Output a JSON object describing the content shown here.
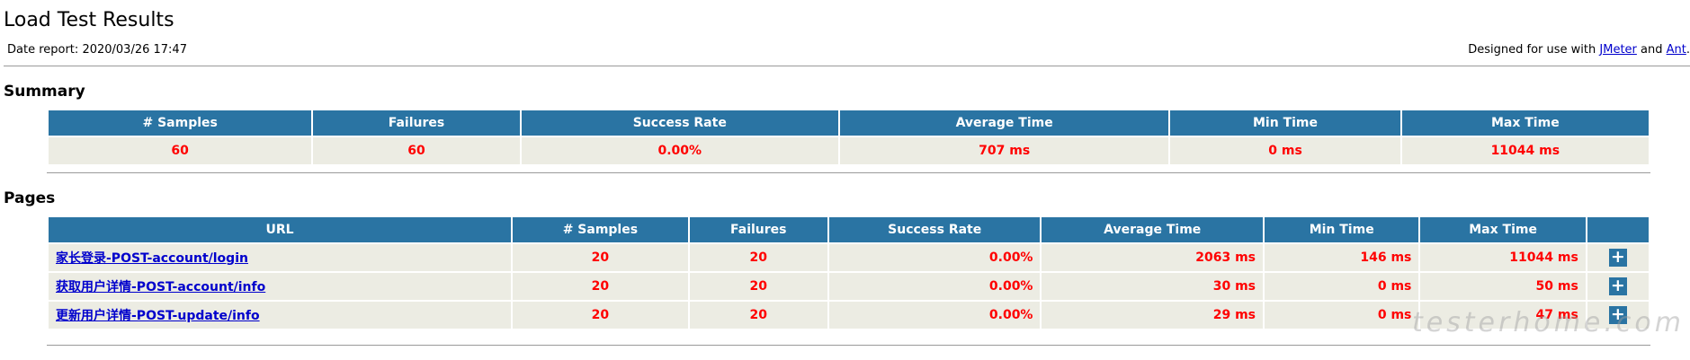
{
  "title": "Load Test Results",
  "date_report": {
    "label": "Date report:",
    "value": "2020/03/26 17:47"
  },
  "designed_for": {
    "prefix": "Designed for use with ",
    "link1": "JMeter",
    "middle": " and ",
    "link2": "Ant",
    "suffix": "."
  },
  "summary": {
    "heading": "Summary",
    "columns": [
      "# Samples",
      "Failures",
      "Success Rate",
      "Average Time",
      "Min Time",
      "Max Time"
    ],
    "row": [
      "60",
      "60",
      "0.00%",
      "707 ms",
      "0 ms",
      "11044 ms"
    ]
  },
  "pages": {
    "heading": "Pages",
    "columns": [
      "URL",
      "# Samples",
      "Failures",
      "Success Rate",
      "Average Time",
      "Min Time",
      "Max Time",
      ""
    ],
    "rows": [
      {
        "url": "家长登录-POST-account/login",
        "samples": "20",
        "failures": "20",
        "success_rate": "0.00%",
        "avg": "2063 ms",
        "min": "146 ms",
        "max": "11044 ms"
      },
      {
        "url": "获取用户详情-POST-account/info",
        "samples": "20",
        "failures": "20",
        "success_rate": "0.00%",
        "avg": "30 ms",
        "min": "0 ms",
        "max": "50 ms"
      },
      {
        "url": "更新用户详情-POST-update/info",
        "samples": "20",
        "failures": "20",
        "success_rate": "0.00%",
        "avg": "29 ms",
        "min": "0 ms",
        "max": "47 ms"
      }
    ],
    "expand_symbol": "+"
  },
  "watermark": "testerhome.com",
  "colors": {
    "header_bg": "#2a74a3",
    "cell_bg": "#ecece3",
    "value_text": "#ff0000",
    "link": "#0000cc"
  }
}
